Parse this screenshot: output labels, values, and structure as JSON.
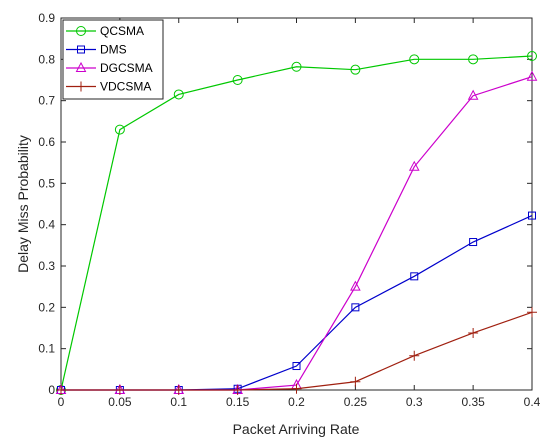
{
  "chart_data": {
    "type": "line",
    "title": "",
    "xlabel": "Packet Arriving Rate",
    "ylabel": "Delay Miss Probability",
    "xlim": [
      0,
      0.4
    ],
    "ylim": [
      0,
      0.9
    ],
    "xticks": [
      0,
      0.05,
      0.1,
      0.15,
      0.2,
      0.25,
      0.3,
      0.35,
      0.4
    ],
    "xtick_labels": [
      "0",
      "0.05",
      "0.1",
      "0.15",
      "0.2",
      "0.25",
      "0.3",
      "0.35",
      "0.4"
    ],
    "yticks": [
      0,
      0.1,
      0.2,
      0.3,
      0.4,
      0.5,
      0.6,
      0.7,
      0.8,
      0.9
    ],
    "ytick_labels": [
      "0",
      "0.1",
      "0.2",
      "0.3",
      "0.4",
      "0.5",
      "0.6",
      "0.7",
      "0.8",
      "0.9"
    ],
    "grid": false,
    "legend_position": "top-left",
    "x": [
      0,
      0.05,
      0.1,
      0.15,
      0.2,
      0.25,
      0.3,
      0.35,
      0.4
    ],
    "series": [
      {
        "name": "QCSMA",
        "marker": "circle",
        "color": "#00c800",
        "values": [
          0,
          0.63,
          0.715,
          0.75,
          0.782,
          0.775,
          0.8,
          0.8,
          0.808
        ]
      },
      {
        "name": "DMS",
        "marker": "square",
        "color": "#0000cc",
        "values": [
          0,
          0,
          0,
          0.003,
          0.058,
          0.2,
          0.275,
          0.358,
          0.422
        ]
      },
      {
        "name": "DGCSMA",
        "marker": "triangle",
        "color": "#cc00cc",
        "values": [
          0,
          0,
          0,
          0,
          0.012,
          0.25,
          0.54,
          0.712,
          0.758
        ]
      },
      {
        "name": "VDCSMA",
        "marker": "plus",
        "color": "#a02010",
        "values": [
          0,
          0,
          0,
          0,
          0.003,
          0.02,
          0.083,
          0.138,
          0.188
        ]
      }
    ]
  }
}
